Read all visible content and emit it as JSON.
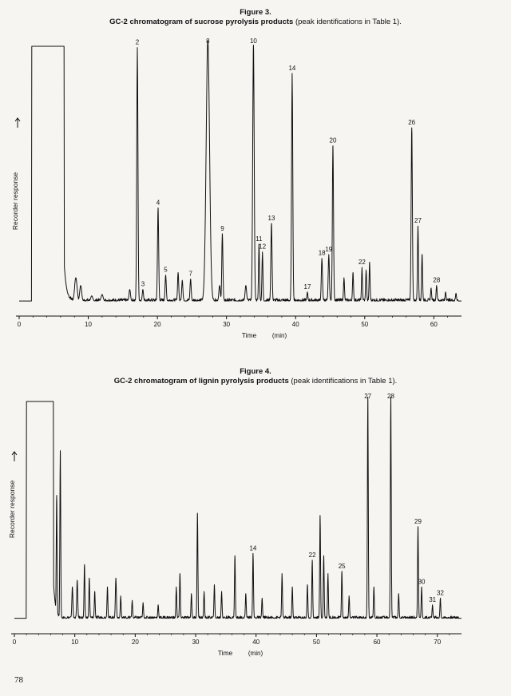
{
  "page_number": "78",
  "figures": [
    {
      "label": "Figure 3.",
      "title_bold": "GC-2 chromatogram of sucrose pyrolysis products",
      "title_rest": " (peak identifications in Table 1)."
    },
    {
      "label": "Figure 4.",
      "title_bold": "GC-2 chromatogram of lignin pyrolysis products",
      "title_rest": " (peak identifications in Table 1)."
    }
  ],
  "chart_data": [
    {
      "type": "line",
      "xlabel": "Time",
      "xunit": "(min)",
      "ylabel": "Recorder response",
      "xlim": [
        0,
        64
      ],
      "ylim": [
        0,
        100
      ],
      "x_ticks": [
        0,
        10,
        20,
        30,
        40,
        50,
        60
      ],
      "grid": false,
      "baseline": 1.5,
      "solvent_peak": {
        "start": 1.8,
        "end": 6.5,
        "height": 100
      },
      "peaks": [
        {
          "t": 8.2,
          "h": 9,
          "w": 0.25
        },
        {
          "t": 8.9,
          "h": 6,
          "w": 0.2
        },
        {
          "t": 10.5,
          "h": 2,
          "w": 0.2
        },
        {
          "t": 12.0,
          "h": 2.5,
          "w": 0.2
        },
        {
          "t": 16.0,
          "h": 4.5,
          "w": 0.15
        },
        {
          "t": 17.1,
          "h": 98,
          "w": 0.12,
          "label": "2"
        },
        {
          "t": 17.9,
          "h": 4.5,
          "w": 0.12,
          "label": "3"
        },
        {
          "t": 20.1,
          "h": 36,
          "w": 0.12,
          "label": "4"
        },
        {
          "t": 21.2,
          "h": 10,
          "w": 0.12,
          "label": "5"
        },
        {
          "t": 23.0,
          "h": 11,
          "w": 0.12
        },
        {
          "t": 23.6,
          "h": 8,
          "w": 0.12
        },
        {
          "t": 24.8,
          "h": 8.5,
          "w": 0.12,
          "label": "7"
        },
        {
          "t": 27.3,
          "h": 101,
          "w": 0.35,
          "label": "8"
        },
        {
          "t": 29.0,
          "h": 6,
          "w": 0.15
        },
        {
          "t": 29.4,
          "h": 26,
          "w": 0.12,
          "label": "9"
        },
        {
          "t": 32.8,
          "h": 6,
          "w": 0.15
        },
        {
          "t": 33.9,
          "h": 99,
          "w": 0.15,
          "label": "10"
        },
        {
          "t": 34.7,
          "h": 22,
          "w": 0.1,
          "label": "11"
        },
        {
          "t": 35.2,
          "h": 19,
          "w": 0.1,
          "label": "12"
        },
        {
          "t": 36.5,
          "h": 30,
          "w": 0.12,
          "label": "13"
        },
        {
          "t": 39.5,
          "h": 88,
          "w": 0.12,
          "label": "14"
        },
        {
          "t": 41.7,
          "h": 3.5,
          "w": 0.1,
          "label": "17"
        },
        {
          "t": 43.8,
          "h": 16.5,
          "w": 0.12,
          "label": "18"
        },
        {
          "t": 44.8,
          "h": 18,
          "w": 0.12,
          "label": "19"
        },
        {
          "t": 45.4,
          "h": 60,
          "w": 0.12,
          "label": "20"
        },
        {
          "t": 47.0,
          "h": 9,
          "w": 0.1
        },
        {
          "t": 48.3,
          "h": 11,
          "w": 0.1
        },
        {
          "t": 49.6,
          "h": 13,
          "w": 0.1,
          "label": "22"
        },
        {
          "t": 50.2,
          "h": 12,
          "w": 0.1
        },
        {
          "t": 50.7,
          "h": 15,
          "w": 0.1
        },
        {
          "t": 56.8,
          "h": 67,
          "w": 0.12,
          "label": "26"
        },
        {
          "t": 57.7,
          "h": 29,
          "w": 0.1,
          "label": "27"
        },
        {
          "t": 58.3,
          "h": 18,
          "w": 0.1
        },
        {
          "t": 59.6,
          "h": 5,
          "w": 0.1
        },
        {
          "t": 60.4,
          "h": 6,
          "w": 0.1,
          "label": "28"
        },
        {
          "t": 61.7,
          "h": 3.5,
          "w": 0.1
        },
        {
          "t": 63.2,
          "h": 3,
          "w": 0.1
        }
      ]
    },
    {
      "type": "line",
      "xlabel": "Time",
      "xunit": "(min)",
      "ylabel": "Recorder response",
      "xlim": [
        0,
        74
      ],
      "ylim": [
        0,
        100
      ],
      "x_ticks": [
        0,
        10,
        20,
        30,
        40,
        50,
        60,
        70
      ],
      "grid": false,
      "baseline": 3,
      "solvent_peak": {
        "start": 2,
        "end": 6.5,
        "height": 100
      },
      "peaks": [
        {
          "t": 7.0,
          "h": 55,
          "w": 0.1
        },
        {
          "t": 7.6,
          "h": 75,
          "w": 0.1
        },
        {
          "t": 9.6,
          "h": 14,
          "w": 0.12
        },
        {
          "t": 10.4,
          "h": 17,
          "w": 0.12
        },
        {
          "t": 11.6,
          "h": 24,
          "w": 0.1
        },
        {
          "t": 12.4,
          "h": 18,
          "w": 0.1
        },
        {
          "t": 13.3,
          "h": 12,
          "w": 0.1
        },
        {
          "t": 15.4,
          "h": 14,
          "w": 0.1
        },
        {
          "t": 16.8,
          "h": 18,
          "w": 0.12
        },
        {
          "t": 17.6,
          "h": 10,
          "w": 0.1
        },
        {
          "t": 19.5,
          "h": 8,
          "w": 0.1
        },
        {
          "t": 21.3,
          "h": 7,
          "w": 0.1
        },
        {
          "t": 23.8,
          "h": 6,
          "w": 0.1
        },
        {
          "t": 26.8,
          "h": 14,
          "w": 0.1
        },
        {
          "t": 27.4,
          "h": 20,
          "w": 0.1
        },
        {
          "t": 29.3,
          "h": 11,
          "w": 0.1
        },
        {
          "t": 30.3,
          "h": 47,
          "w": 0.1
        },
        {
          "t": 31.4,
          "h": 12,
          "w": 0.1
        },
        {
          "t": 33.1,
          "h": 15,
          "w": 0.1
        },
        {
          "t": 34.3,
          "h": 12,
          "w": 0.1
        },
        {
          "t": 36.5,
          "h": 28,
          "w": 0.1
        },
        {
          "t": 38.3,
          "h": 11,
          "w": 0.1
        },
        {
          "t": 39.5,
          "h": 29,
          "w": 0.1,
          "label": "14"
        },
        {
          "t": 41.0,
          "h": 9,
          "w": 0.1
        },
        {
          "t": 44.3,
          "h": 20,
          "w": 0.1
        },
        {
          "t": 46.0,
          "h": 14,
          "w": 0.1
        },
        {
          "t": 48.5,
          "h": 15,
          "w": 0.1
        },
        {
          "t": 49.3,
          "h": 26,
          "w": 0.1,
          "label": "22"
        },
        {
          "t": 50.6,
          "h": 46,
          "w": 0.1
        },
        {
          "t": 51.2,
          "h": 28,
          "w": 0.1
        },
        {
          "t": 51.9,
          "h": 20,
          "w": 0.1
        },
        {
          "t": 54.2,
          "h": 21,
          "w": 0.1,
          "label": "25"
        },
        {
          "t": 55.4,
          "h": 10,
          "w": 0.1
        },
        {
          "t": 58.5,
          "h": 99,
          "w": 0.1,
          "label": "27"
        },
        {
          "t": 59.5,
          "h": 14,
          "w": 0.1
        },
        {
          "t": 62.3,
          "h": 99,
          "w": 0.1,
          "label": "28"
        },
        {
          "t": 63.6,
          "h": 11,
          "w": 0.1
        },
        {
          "t": 66.8,
          "h": 41,
          "w": 0.1,
          "label": "29"
        },
        {
          "t": 67.4,
          "h": 14,
          "w": 0.1,
          "label": "30"
        },
        {
          "t": 69.2,
          "h": 6,
          "w": 0.1,
          "label": "31"
        },
        {
          "t": 70.5,
          "h": 9,
          "w": 0.1,
          "label": "32"
        }
      ]
    }
  ]
}
